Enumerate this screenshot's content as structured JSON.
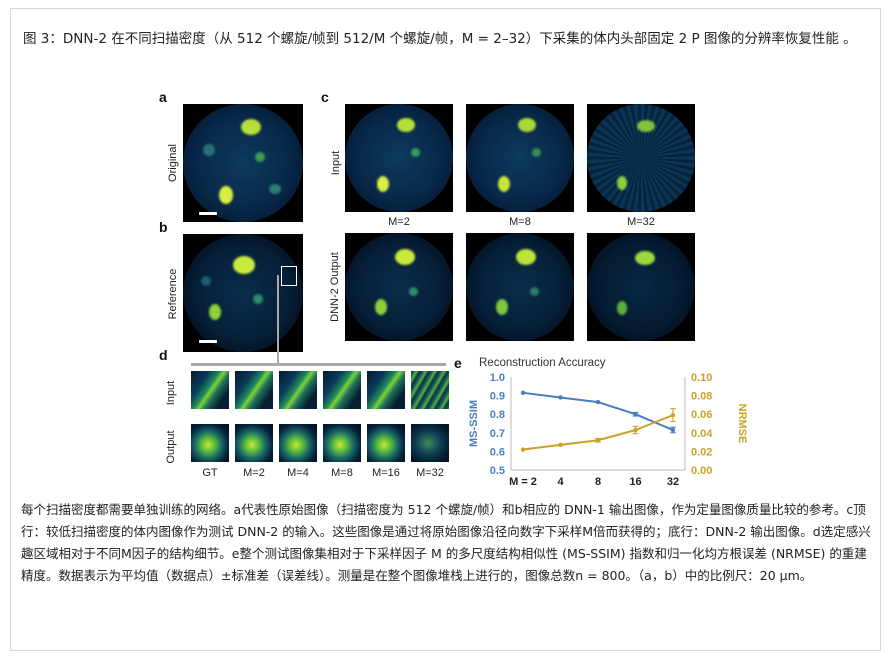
{
  "caption_top": "图 3：DNN-2 在不同扫描密度（从 512 个螺旋/帧到 512/M 个螺旋/帧，M = 2–32）下采集的体内头部固定 2 P 图像的分辨率恢复性能 。",
  "caption_bottom": "每个扫描密度都需要单独训练的网络。a代表性原始图像（扫描密度为 512 个螺旋/帧）和b相应的 DNN-1 输出图像，作为定量图像质量比较的参考。c顶行：较低扫描密度的体内图像作为测试 DNN-2 的输入。这些图像是通过将原始图像沿径向数字下采样M倍而获得的；底行：DNN-2 输出图像。d选定感兴趣区域相对于不同M因子的结构细节。e整个测试图像集相对于下采样因子 M 的多尺度结构相似性 (MS-SSIM) 指数和归一化均方根误差 (NRMSE) 的重建精度。数据表示为平均值（数据点）±标准差（误差线）。测量是在整个图像堆栈上进行的，图像总数n = 800。（a，b）中的比例尺：20 μm。",
  "figure": {
    "panel_labels": {
      "a": "a",
      "b": "b",
      "c": "c",
      "d": "d",
      "e": "e"
    },
    "row_labels": {
      "original": "Original",
      "reference": "Reference",
      "input": "Input",
      "dnn2_output": "DNN-2 Output",
      "d_input": "Input",
      "d_output": "Output"
    },
    "c_column_labels": [
      "M=2",
      "M=8",
      "M=32"
    ],
    "d_column_labels": [
      "GT",
      "M=2",
      "M=4",
      "M=8",
      "M=16",
      "M=32"
    ]
  },
  "chart_data": {
    "type": "line",
    "title": "Reconstruction Accuracy",
    "x": [
      2,
      4,
      8,
      16,
      32
    ],
    "x_tick_labels": [
      "M = 2",
      "4",
      "8",
      "16",
      "32"
    ],
    "y_left_label": "MS-SSIM",
    "y_left_ticks": [
      "1.0",
      "0.9",
      "0.8",
      "0.7",
      "0.6",
      "0.5"
    ],
    "y_left_lim": [
      0.5,
      1.0
    ],
    "y_right_label": "NRMSE",
    "y_right_ticks": [
      "0.10",
      "0.08",
      "0.06",
      "0.04",
      "0.02",
      "0.00"
    ],
    "y_right_lim": [
      0.0,
      0.1
    ],
    "series": [
      {
        "name": "MS-SSIM",
        "axis": "left",
        "color": "#4a7cc0",
        "values": [
          0.915,
          0.89,
          0.865,
          0.8,
          0.715
        ],
        "errors": [
          0.0,
          0.0,
          0.0,
          0.01,
          0.015
        ]
      },
      {
        "name": "NRMSE",
        "axis": "right",
        "color": "#c9a227",
        "values": [
          0.022,
          0.027,
          0.032,
          0.043,
          0.059
        ],
        "errors": [
          0.0,
          0.0,
          0.002,
          0.004,
          0.007
        ]
      }
    ],
    "grid": false
  }
}
